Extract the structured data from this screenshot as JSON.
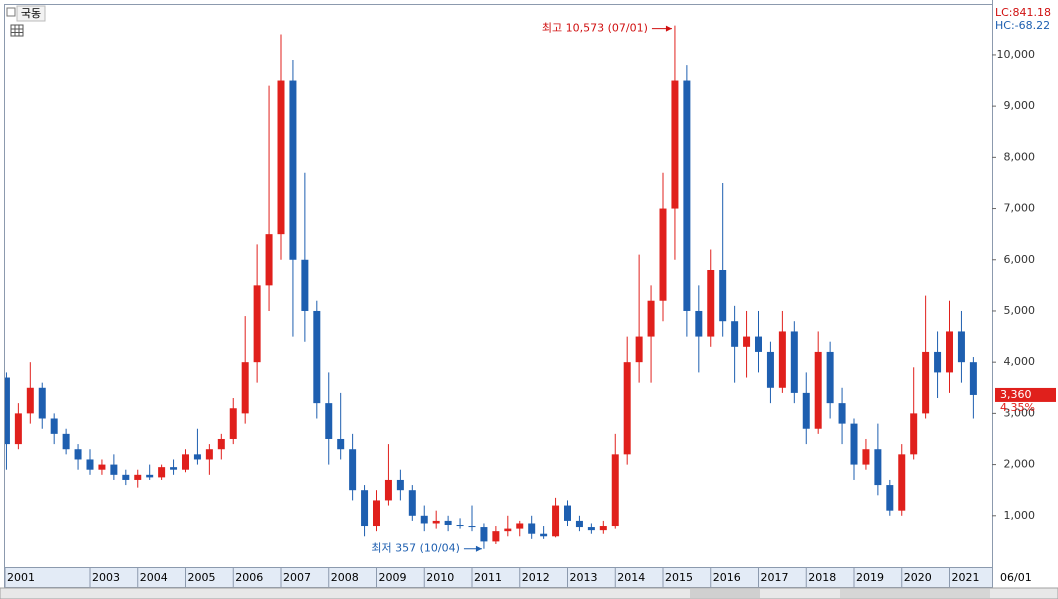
{
  "chart_data": {
    "type": "candlestick",
    "name": "국동",
    "legend_top": "LC:841.18",
    "legend_bottom": "HC:-68.22",
    "x_end_label": "06/01",
    "price_label": {
      "value": 3360,
      "label": "3,360"
    },
    "change_label": "4.35%",
    "high_annotation": "최고 10,573 (07/01)",
    "low_annotation": "최저 357 (10/04)",
    "up_color": "#e0201c",
    "down_color": "#1e5fb0",
    "xlim": [
      2001.22,
      2021.89
    ],
    "ylim": [
      0,
      10975
    ],
    "xticks": [
      {
        "value": 2001.22,
        "label": "2001"
      },
      2003,
      2004,
      2005,
      2006,
      2007,
      2008,
      2009,
      2010,
      2011,
      2012,
      2013,
      2014,
      2015,
      2016,
      2017,
      2018,
      2019,
      2020,
      2021
    ],
    "yticks": [
      {
        "value": 1000,
        "label": "1,000"
      },
      {
        "value": 2000,
        "label": "2,000"
      },
      {
        "value": 3000,
        "label": "3,000"
      },
      {
        "value": 4000,
        "label": "4,000"
      },
      {
        "value": 5000,
        "label": "5,000"
      },
      {
        "value": 6000,
        "label": "6,000"
      },
      {
        "value": 7000,
        "label": "7,000"
      },
      {
        "value": 8000,
        "label": "8,000"
      },
      {
        "value": 9000,
        "label": "9,000"
      },
      {
        "value": 10000,
        "label": "10,000"
      }
    ],
    "x": [
      2001.25,
      2001.5,
      2001.75,
      2002,
      2002.25,
      2002.5,
      2002.75,
      2003,
      2003.25,
      2003.5,
      2003.75,
      2004,
      2004.25,
      2004.5,
      2004.75,
      2005,
      2005.25,
      2005.5,
      2005.75,
      2006,
      2006.25,
      2006.5,
      2006.75,
      2007,
      2007.25,
      2007.5,
      2007.75,
      2008,
      2008.25,
      2008.5,
      2008.75,
      2009,
      2009.25,
      2009.5,
      2009.75,
      2010,
      2010.25,
      2010.5,
      2010.75,
      2011,
      2011.25,
      2011.5,
      2011.75,
      2012,
      2012.25,
      2012.5,
      2012.75,
      2013,
      2013.25,
      2013.5,
      2013.75,
      2014,
      2014.25,
      2014.5,
      2014.75,
      2015,
      2015.25,
      2015.5,
      2015.75,
      2016,
      2016.25,
      2016.5,
      2016.75,
      2017,
      2017.25,
      2017.5,
      2017.75,
      2018,
      2018.25,
      2018.5,
      2018.75,
      2019,
      2019.25,
      2019.5,
      2019.75,
      2020,
      2020.25,
      2020.5,
      2020.75,
      2021,
      2021.25,
      2021.5
    ],
    "open": [
      3700,
      2400,
      3000,
      3500,
      2900,
      2600,
      2300,
      2100,
      1900,
      2000,
      1800,
      1700,
      1800,
      1750,
      1950,
      1900,
      2200,
      2100,
      2300,
      2500,
      3000,
      4000,
      5500,
      6500,
      9500,
      6000,
      5000,
      3200,
      2500,
      2300,
      1500,
      800,
      1300,
      1700,
      1500,
      1000,
      850,
      900,
      820,
      800,
      780,
      500,
      700,
      750,
      850,
      650,
      600,
      1200,
      900,
      780,
      720,
      800,
      2200,
      4000,
      4500,
      5200,
      7000,
      9500,
      5000,
      4500,
      5800,
      4800,
      4300,
      4500,
      4200,
      3500,
      4600,
      3400,
      2700,
      4200,
      3200,
      2800,
      2000,
      2300,
      1600,
      1100,
      2200,
      3000,
      4200,
      3800,
      4600,
      4000
    ],
    "high": [
      3800,
      3200,
      4000,
      3600,
      3000,
      2700,
      2400,
      2300,
      2100,
      2200,
      1900,
      1900,
      2000,
      2000,
      2100,
      2300,
      2700,
      2400,
      2600,
      3300,
      4900,
      6300,
      9400,
      10400,
      9900,
      7700,
      5200,
      3800,
      3400,
      2600,
      1600,
      1500,
      2400,
      1900,
      1600,
      1200,
      1100,
      1000,
      950,
      1200,
      850,
      800,
      1000,
      900,
      1000,
      800,
      1350,
      1300,
      1000,
      850,
      900,
      2600,
      4500,
      6100,
      5500,
      7700,
      10573,
      9800,
      5500,
      6200,
      7500,
      5100,
      5000,
      5000,
      4400,
      5000,
      4800,
      3800,
      4600,
      4400,
      3500,
      2900,
      2500,
      2800,
      1700,
      2400,
      3900,
      5300,
      4600,
      5200,
      5000,
      4100
    ],
    "low": [
      1900,
      2300,
      2800,
      2700,
      2400,
      2200,
      1900,
      1800,
      1800,
      1700,
      1600,
      1550,
      1700,
      1700,
      1800,
      1850,
      2000,
      1800,
      2100,
      2400,
      2800,
      3600,
      5000,
      6000,
      4500,
      4400,
      2900,
      2000,
      2100,
      1300,
      600,
      700,
      1200,
      1300,
      900,
      700,
      750,
      700,
      750,
      700,
      357,
      450,
      600,
      600,
      550,
      550,
      580,
      800,
      700,
      650,
      650,
      750,
      2000,
      3600,
      3600,
      4800,
      6000,
      4500,
      3800,
      4300,
      4500,
      3600,
      3700,
      3800,
      3200,
      3400,
      3200,
      2400,
      2600,
      2900,
      2400,
      1700,
      1900,
      1400,
      1000,
      1000,
      2100,
      2900,
      3300,
      3400,
      3600,
      2900
    ],
    "close": [
      2400,
      3000,
      3500,
      2900,
      2600,
      2300,
      2100,
      1900,
      2000,
      1800,
      1700,
      1800,
      1750,
      1950,
      1900,
      2200,
      2100,
      2300,
      2500,
      3100,
      4000,
      5500,
      6500,
      9500,
      6000,
      5000,
      3200,
      2500,
      2300,
      1500,
      800,
      1300,
      1700,
      1500,
      1000,
      850,
      900,
      820,
      800,
      780,
      500,
      700,
      750,
      850,
      650,
      600,
      1200,
      900,
      780,
      720,
      800,
      2200,
      4000,
      4500,
      5200,
      7000,
      9500,
      5000,
      4500,
      5800,
      4800,
      4300,
      4500,
      4200,
      3500,
      4600,
      3400,
      2700,
      4200,
      3200,
      2800,
      2000,
      2300,
      1600,
      1100,
      2200,
      3000,
      4200,
      3800,
      4600,
      4000,
      3360
    ]
  }
}
